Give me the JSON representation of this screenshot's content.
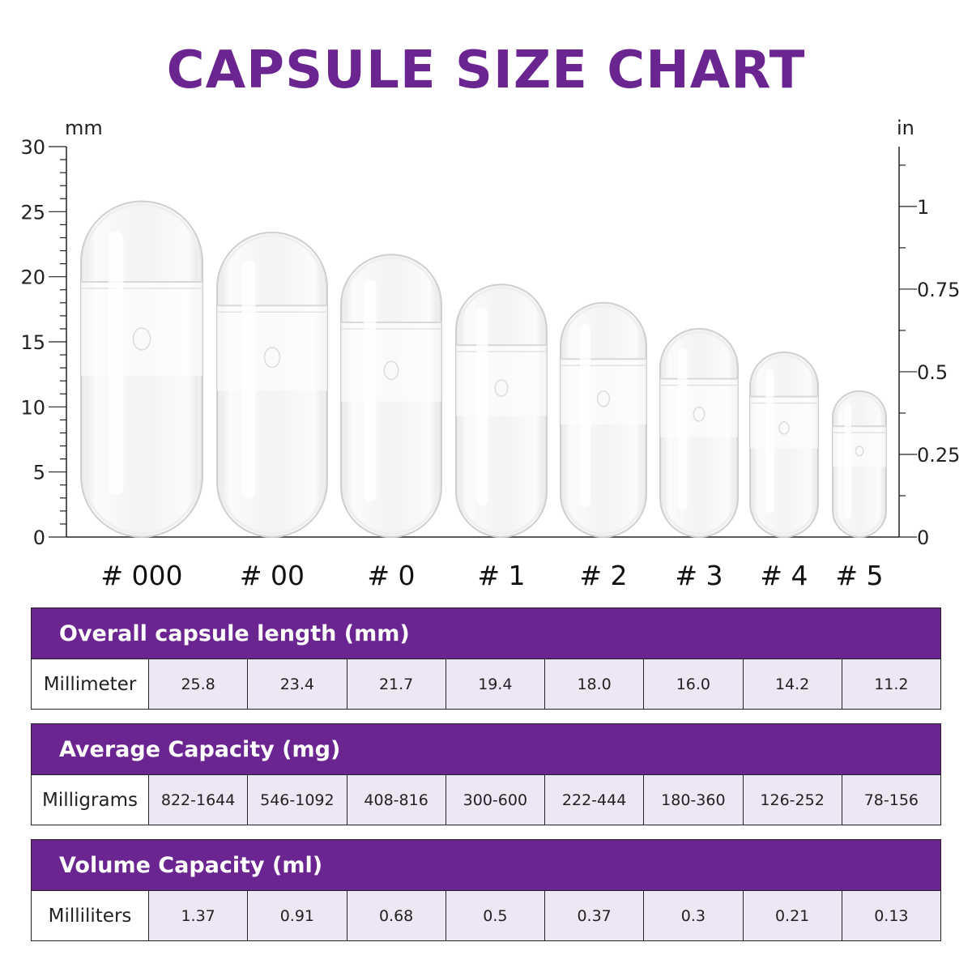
{
  "title": "CAPSULE SIZE CHART",
  "colors": {
    "accent": "#6a2590",
    "cell_bg": "#ede6f5",
    "border": "#222222"
  },
  "chart_data": {
    "type": "bar",
    "title": "CAPSULE SIZE CHART",
    "categories": [
      "# 000",
      "# 00",
      "# 0",
      "# 1",
      "# 2",
      "# 3",
      "# 4",
      "# 5"
    ],
    "values": [
      25.8,
      23.4,
      21.7,
      19.4,
      18.0,
      16.0,
      14.2,
      11.2
    ],
    "left_axis": {
      "unit": "mm",
      "range": [
        0,
        30
      ],
      "ticks": [
        "30",
        "25",
        "20",
        "15",
        "10",
        "5",
        "0"
      ]
    },
    "right_axis": {
      "unit": "in",
      "range": [
        0,
        1.18
      ],
      "ticks": [
        "1",
        "0.75",
        "0.5",
        "0.25",
        "0"
      ]
    },
    "grid": false
  },
  "tables": [
    {
      "header": "Overall capsule length (mm)",
      "row_label": "Millimeter",
      "values": [
        "25.8",
        "23.4",
        "21.7",
        "19.4",
        "18.0",
        "16.0",
        "14.2",
        "11.2"
      ]
    },
    {
      "header": "Average Capacity (mg)",
      "row_label": "Milligrams",
      "values": [
        "822-1644",
        "546-1092",
        "408-816",
        "300-600",
        "222-444",
        "180-360",
        "126-252",
        "78-156"
      ]
    },
    {
      "header": "Volume Capacity (ml)",
      "row_label": "Milliliters",
      "values": [
        "1.37",
        "0.91",
        "0.68",
        "0.5",
        "0.37",
        "0.3",
        "0.21",
        "0.13"
      ]
    }
  ]
}
